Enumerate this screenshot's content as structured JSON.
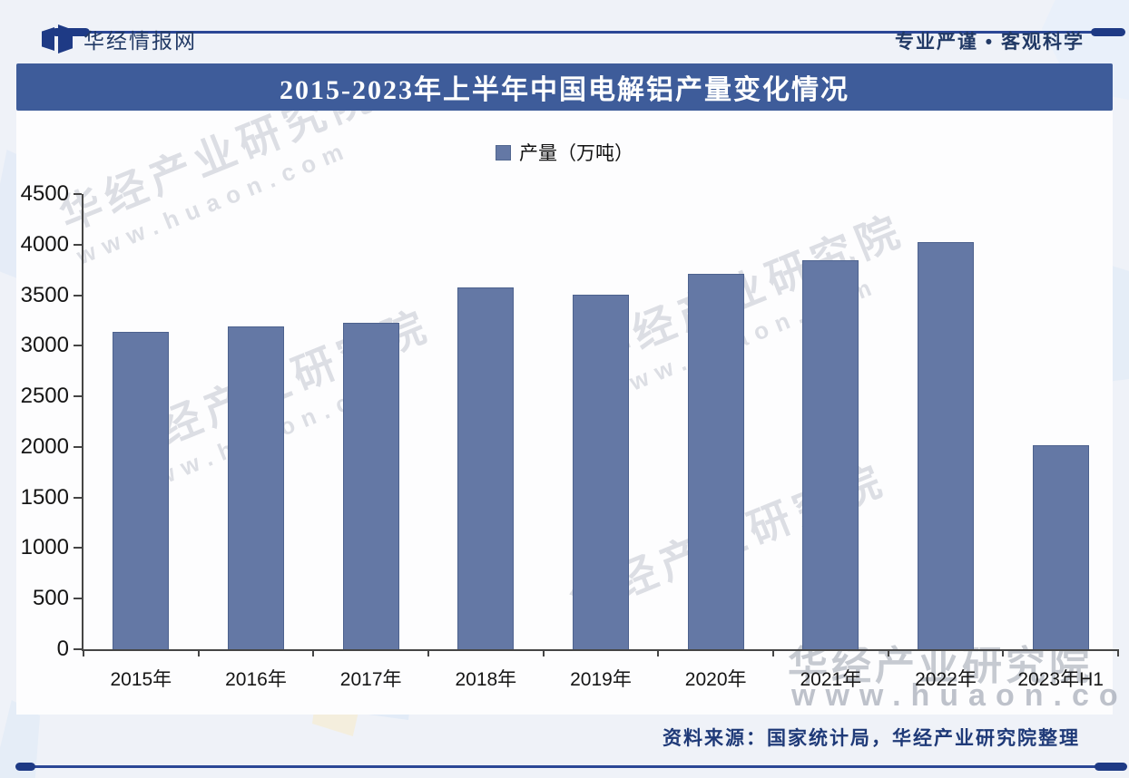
{
  "header": {
    "brand": "华经情报网",
    "slogan": "专业严谨 • 客观科学"
  },
  "title_bar": {
    "title": "2015-2023年上半年中国电解铝产量变化情况"
  },
  "chart_data": {
    "type": "bar",
    "title": "2015-2023年上半年中国电解铝产量变化情况",
    "legend": [
      "产量（万吨）"
    ],
    "legend_position": "top-center",
    "categories": [
      "2015年",
      "2016年",
      "2017年",
      "2018年",
      "2019年",
      "2020年",
      "2021年",
      "2022年",
      "2023年H1"
    ],
    "values": [
      3141,
      3187,
      3227,
      3580,
      3504,
      3708,
      3850,
      4021,
      2016
    ],
    "xlabel": "",
    "ylabel": "",
    "ylim": [
      0,
      4500
    ],
    "yticks": [
      0,
      500,
      1000,
      1500,
      2000,
      2500,
      3000,
      3500,
      4000,
      4500
    ],
    "grid": false,
    "bar_color": "#6478a5"
  },
  "footer": {
    "source": "资料来源：国家统计局，华经产业研究院整理"
  },
  "watermarks": {
    "diagonal_text": "华经产业研究院",
    "diagonal_url": "www.huaon.com",
    "bottom_text": "华经产业研究院",
    "bottom_url": "www.huaon.com"
  },
  "colors": {
    "accent_navy": "#1e3a85",
    "line_blue": "#2b4796",
    "title_bar_bg": "#3e5c9a",
    "bar_fill": "#6478a5",
    "bar_border": "#4d628e",
    "axis": "#454545",
    "footer_text": "#1f3a78"
  }
}
